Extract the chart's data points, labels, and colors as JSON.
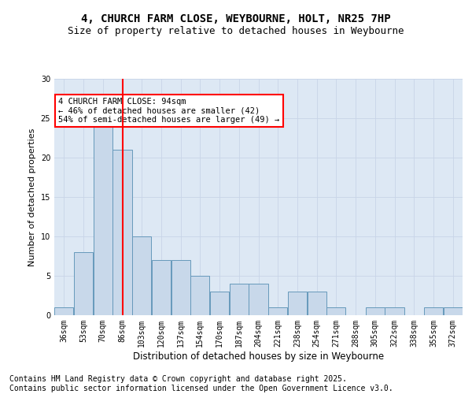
{
  "title1": "4, CHURCH FARM CLOSE, WEYBOURNE, HOLT, NR25 7HP",
  "title2": "Size of property relative to detached houses in Weybourne",
  "xlabel": "Distribution of detached houses by size in Weybourne",
  "ylabel": "Number of detached properties",
  "bar_color": "#c8d8ea",
  "bar_edge_color": "#6699bb",
  "grid_color": "#c8d4e8",
  "background_color": "#dde8f4",
  "vline_x": 3,
  "vline_color": "red",
  "annotation_text": "4 CHURCH FARM CLOSE: 94sqm\n← 46% of detached houses are smaller (42)\n54% of semi-detached houses are larger (49) →",
  "annotation_box_color": "white",
  "annotation_box_edge": "red",
  "bin_labels": [
    "36sqm",
    "53sqm",
    "70sqm",
    "86sqm",
    "103sqm",
    "120sqm",
    "137sqm",
    "154sqm",
    "170sqm",
    "187sqm",
    "204sqm",
    "221sqm",
    "238sqm",
    "254sqm",
    "271sqm",
    "288sqm",
    "305sqm",
    "322sqm",
    "338sqm",
    "355sqm",
    "372sqm"
  ],
  "counts": [
    1,
    8,
    24,
    21,
    10,
    7,
    7,
    5,
    3,
    4,
    4,
    1,
    3,
    3,
    1,
    0,
    1,
    1,
    0,
    1,
    1
  ],
  "ylim": [
    0,
    30
  ],
  "yticks": [
    0,
    5,
    10,
    15,
    20,
    25,
    30
  ],
  "footer_line1": "Contains HM Land Registry data © Crown copyright and database right 2025.",
  "footer_line2": "Contains public sector information licensed under the Open Government Licence v3.0.",
  "title1_fontsize": 10,
  "title2_fontsize": 9,
  "tick_fontsize": 7,
  "ylabel_fontsize": 8,
  "xlabel_fontsize": 8.5,
  "footer_fontsize": 7,
  "annot_fontsize": 7.5
}
